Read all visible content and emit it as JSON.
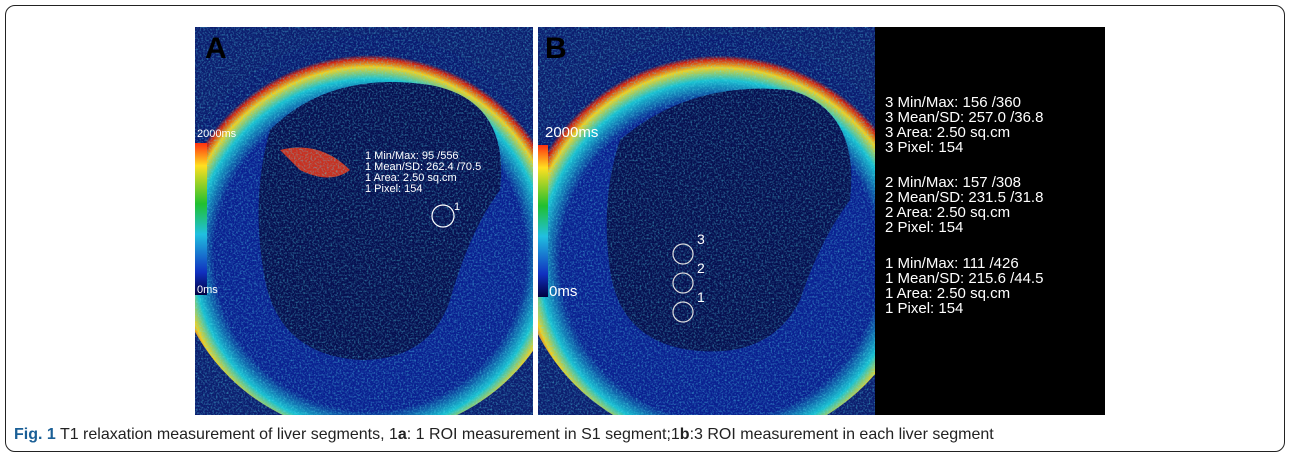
{
  "figure": {
    "panels": [
      {
        "label": "A",
        "scale_max": "2000ms",
        "scale_min": "0ms",
        "rois": [
          "1"
        ],
        "measurements": [
          [
            "1 Min/Max: 95 /556",
            "1 Mean/SD: 262.4 /70.5",
            "1 Area: 2.50 sq.cm",
            "1 Pixel: 154"
          ]
        ]
      },
      {
        "label": "B",
        "scale_max": "2000ms",
        "scale_min": "0ms",
        "rois": [
          "3",
          "2",
          "1"
        ],
        "measurements": [
          [
            "3 Min/Max: 156 /360",
            "3 Mean/SD: 257.0 /36.8",
            "3 Area: 2.50 sq.cm",
            "3 Pixel: 154"
          ],
          [
            "2 Min/Max: 157 /308",
            "2 Mean/SD: 231.5 /31.8",
            "2 Area: 2.50 sq.cm",
            "2 Pixel: 154"
          ],
          [
            "1 Min/Max: 111 /426",
            "1 Mean/SD: 215.6 /44.5",
            "1 Area: 2.50 sq.cm",
            "1 Pixel: 154"
          ]
        ]
      }
    ],
    "caption": {
      "label": "Fig. 1",
      "text_1": "T1 relaxation measurement of liver segments, 1",
      "bold_1": "a",
      "text_2": ": 1 ROI measurement in S1 segment;1",
      "bold_2": "b",
      "text_3": ":3 ROI measurement in each liver segment"
    }
  }
}
